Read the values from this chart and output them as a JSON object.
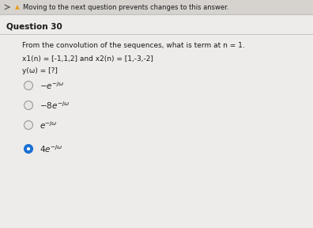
{
  "warning_text": "Moving to the next question prevents changes to this answer.",
  "question_number": "Question 30",
  "question_text": "From the convolution of the sequences, what is term at n = 1.",
  "sequence_text": "x1(n) = [-1,1,2] and x2(n) = [1,-3,-2]",
  "yw_text": "y(ω) = [?]",
  "options": [
    "$-e^{-j\\omega}$",
    "$-8e^{-j\\omega}$",
    "$e^{-j\\omega}$",
    "$4e^{-j\\omega}$"
  ],
  "selected_option": 3,
  "bg_color": "#e8e6e3",
  "content_bg": "#e8e6e3",
  "warning_bar_color": "#d6d3cf",
  "warning_color": "#e8a020",
  "text_color": "#1a1a1a",
  "option_text_color": "#222222",
  "selected_dot_color": "#1a6fd4",
  "unselected_dot_color": "#e8e6e3",
  "dot_border_color": "#999999",
  "divider_color": "#c0bebb",
  "font_size_warning": 6.0,
  "font_size_question": 7.5,
  "font_size_body": 6.5,
  "font_size_options": 7.5,
  "arrow_color": "#666666"
}
